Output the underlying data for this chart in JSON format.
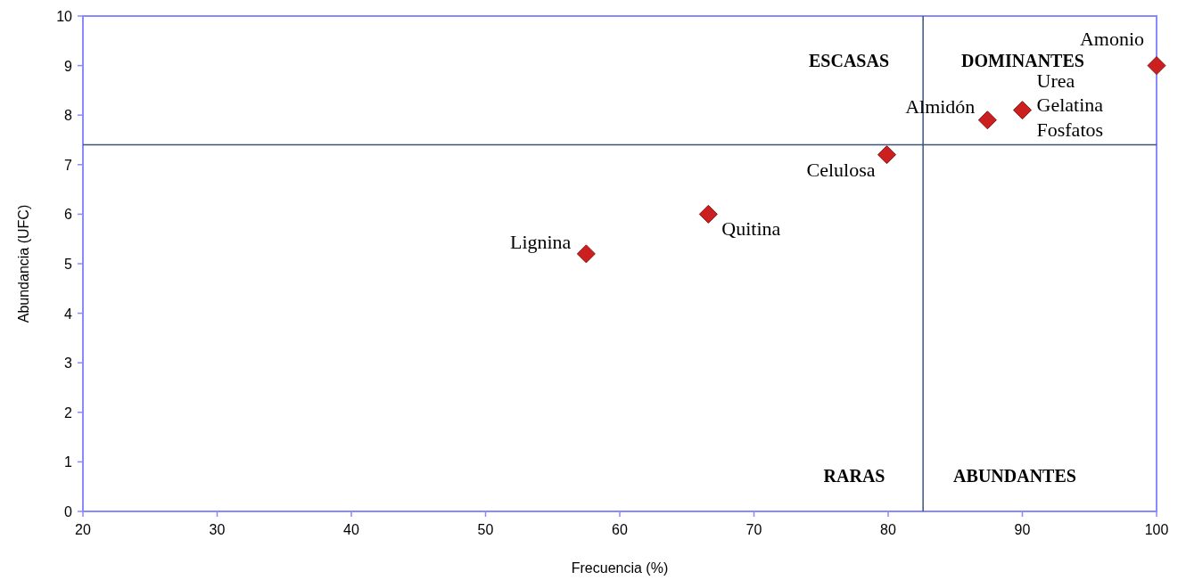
{
  "chart_data": {
    "type": "scatter",
    "xlabel": "Frecuencia (%)",
    "ylabel": "Abundancia (UFC)",
    "x": [
      57.5,
      66.6,
      79.9,
      87.4,
      90.0,
      100
    ],
    "series": [
      {
        "color": "#cc2020",
        "values": [
          5.2,
          6.0,
          7.2,
          7.9,
          8.1,
          9.0
        ]
      }
    ],
    "marker": "diamond",
    "grid": false,
    "xlim": [
      20,
      100
    ],
    "xticks": [
      20,
      30,
      40,
      50,
      60,
      70,
      80,
      90,
      100
    ],
    "ylim": [
      0,
      10
    ],
    "yticks": [
      0,
      1,
      2,
      3,
      4,
      5,
      6,
      7,
      8,
      9,
      10
    ],
    "ref_lines": [
      {
        "axis": "x",
        "value": 82.6,
        "color": "#3a5578"
      },
      {
        "axis": "y",
        "value": 7.4,
        "color": "#3a5578"
      }
    ],
    "annotations": [
      {
        "text": "Amonio",
        "x": 100,
        "y": 9.0
      },
      {
        "text": "Urea",
        "x": 90.0,
        "y": 8.1
      },
      {
        "text": "Gelatina",
        "x": 90.0,
        "y": 8.1
      },
      {
        "text": "Fosfatos",
        "x": 90.0,
        "y": 8.1
      },
      {
        "text": "Almidón",
        "x": 87.4,
        "y": 7.9
      },
      {
        "text": "Celulosa",
        "x": 79.9,
        "y": 7.2
      },
      {
        "text": "Quitina",
        "x": 66.6,
        "y": 6.0
      },
      {
        "text": "Lignina",
        "x": 57.5,
        "y": 5.2
      },
      "ESCASAS",
      "DOMINANTES",
      "RARAS",
      "ABUNDANTES"
    ]
  }
}
